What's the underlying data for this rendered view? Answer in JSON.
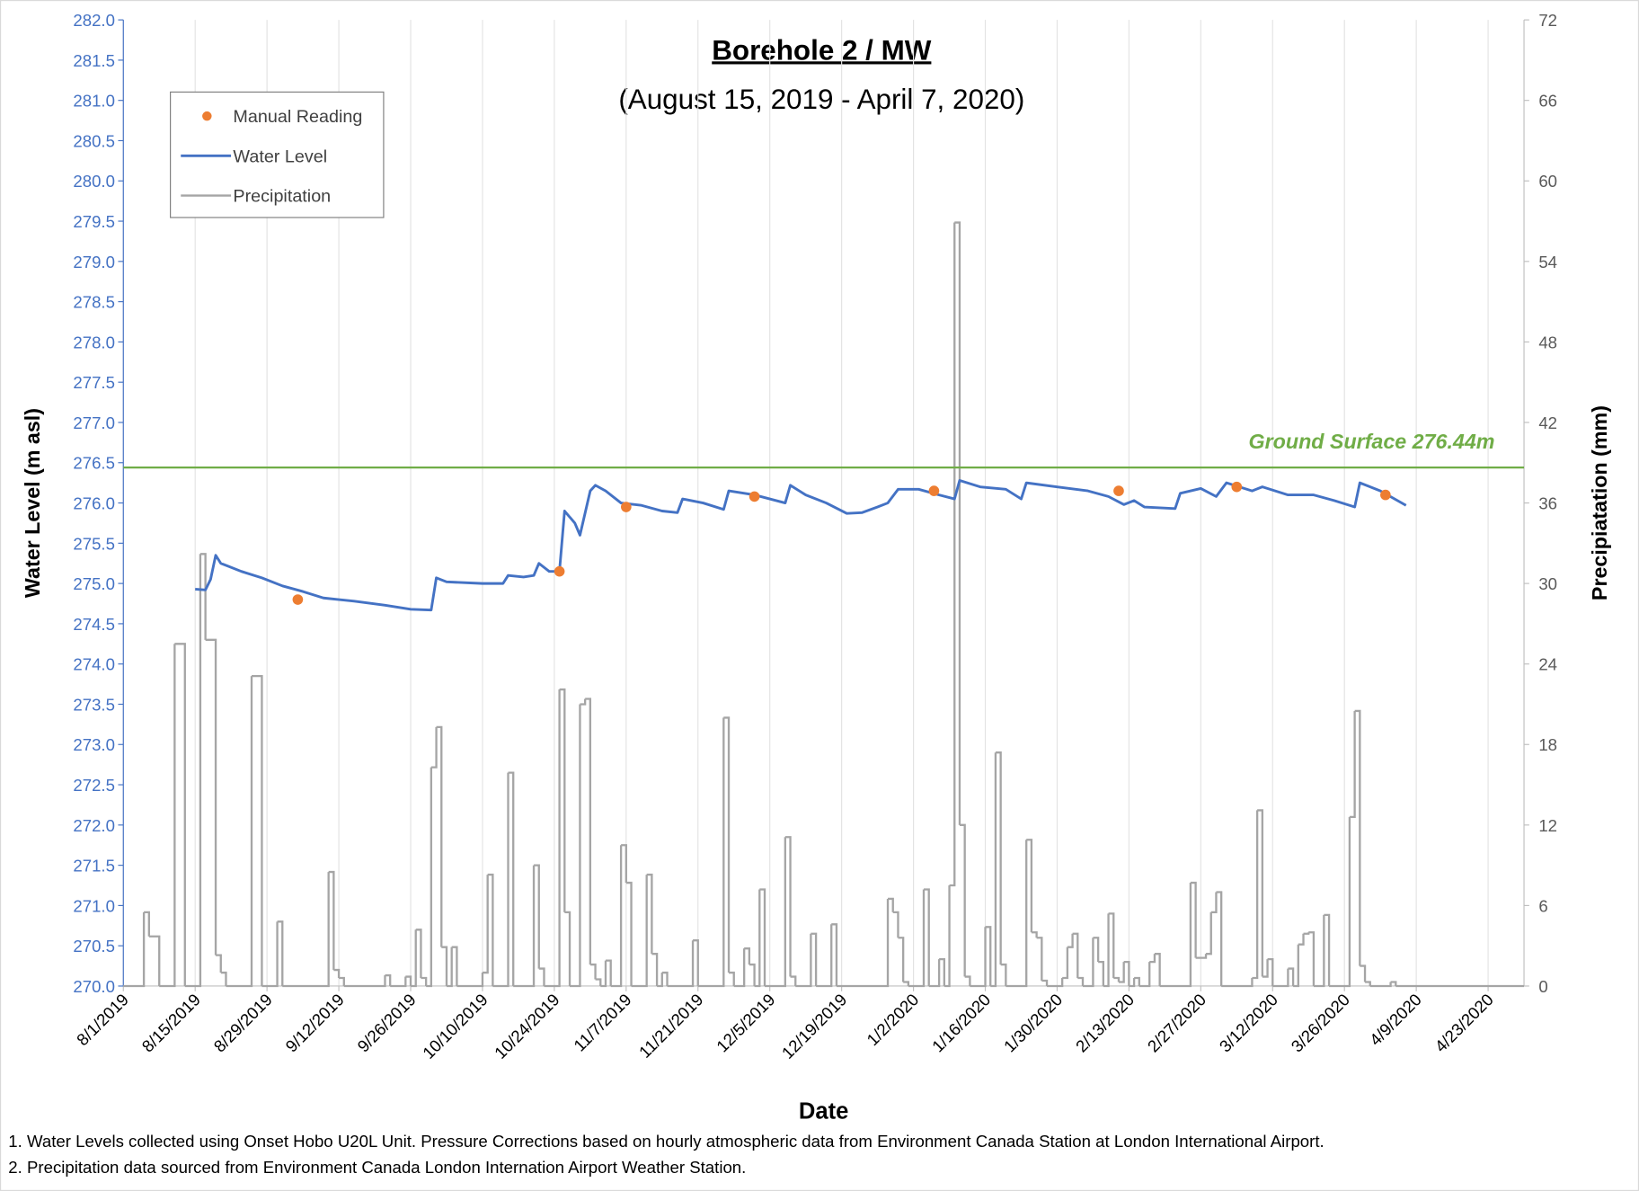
{
  "chart_data": {
    "type": "line",
    "title": "Borehole 2 / MW",
    "subtitle": "(August 15, 2019 - April 7, 2020)",
    "x_label": "Date",
    "y_label": "Water Level (m asl)",
    "y2_label": "Precipiatation (mm)",
    "legend": "upper left",
    "grid": "x",
    "xlim": [
      "8/1/2019",
      "4/30/2020"
    ],
    "xticks": [
      "8/1/2019",
      "8/15/2019",
      "8/29/2019",
      "9/12/2019",
      "9/26/2019",
      "10/10/2019",
      "10/24/2019",
      "11/7/2019",
      "11/21/2019",
      "12/5/2019",
      "12/19/2019",
      "1/2/2020",
      "1/16/2020",
      "1/30/2020",
      "2/13/2020",
      "2/27/2020",
      "3/12/2020",
      "3/26/2020",
      "4/9/2020",
      "4/23/2020"
    ],
    "ylim": [
      270,
      282
    ],
    "yticks": [
      {
        "value": 270,
        "label": "270.0"
      },
      {
        "value": 270.5,
        "label": "270.5"
      },
      {
        "value": 271,
        "label": "271.0"
      },
      {
        "value": 271.5,
        "label": "271.5"
      },
      {
        "value": 272,
        "label": "272.0"
      },
      {
        "value": 272.5,
        "label": "272.5"
      },
      {
        "value": 273,
        "label": "273.0"
      },
      {
        "value": 273.5,
        "label": "273.5"
      },
      {
        "value": 274,
        "label": "274.0"
      },
      {
        "value": 274.5,
        "label": "274.5"
      },
      {
        "value": 275,
        "label": "275.0"
      },
      {
        "value": 275.5,
        "label": "275.5"
      },
      {
        "value": 276,
        "label": "276.0"
      },
      {
        "value": 276.5,
        "label": "276.5"
      },
      {
        "value": 277,
        "label": "277.0"
      },
      {
        "value": 277.5,
        "label": "277.5"
      },
      {
        "value": 278,
        "label": "278.0"
      },
      {
        "value": 278.5,
        "label": "278.5"
      },
      {
        "value": 279,
        "label": "279.0"
      },
      {
        "value": 279.5,
        "label": "279.5"
      },
      {
        "value": 280,
        "label": "280.0"
      },
      {
        "value": 280.5,
        "label": "280.5"
      },
      {
        "value": 281,
        "label": "281.0"
      },
      {
        "value": 281.5,
        "label": "281.5"
      },
      {
        "value": 282,
        "label": "282.0"
      }
    ],
    "y2lim": [
      0,
      72
    ],
    "y2ticks": [
      0,
      6,
      12,
      18,
      24,
      30,
      36,
      42,
      48,
      54,
      60,
      66,
      72
    ],
    "reference_line": {
      "label": "Ground Surface 276.44m",
      "value": 276.44,
      "color": "#70ad47"
    },
    "series": [
      {
        "name": "Manual Reading",
        "type": "scatter",
        "color": "#ed7d31",
        "x": [
          "9/4/2019",
          "10/25/2019",
          "11/7/2019",
          "12/2/2019",
          "1/6/2020",
          "2/11/2020",
          "3/5/2020",
          "4/3/2020"
        ],
        "values": [
          274.8,
          275.15,
          275.95,
          276.08,
          276.15,
          276.15,
          276.2,
          276.1
        ]
      },
      {
        "name": "Water Level",
        "type": "line",
        "color": "#4472c4",
        "x": [
          "8/15/2019",
          "8/17/2019",
          "8/18/2019",
          "8/19/2019",
          "8/20/2019",
          "8/24/2019",
          "8/28/2019",
          "9/1/2019",
          "9/5/2019",
          "9/9/2019",
          "9/15/2019",
          "9/21/2019",
          "9/26/2019",
          "9/30/2019",
          "10/1/2019",
          "10/3/2019",
          "10/10/2019",
          "10/14/2019",
          "10/15/2019",
          "10/18/2019",
          "10/20/2019",
          "10/21/2019",
          "10/23/2019",
          "10/25/2019",
          "10/26/2019",
          "10/28/2019",
          "10/29/2019",
          "10/31/2019",
          "11/1/2019",
          "11/3/2019",
          "11/6/2019",
          "11/10/2019",
          "11/14/2019",
          "11/17/2019",
          "11/18/2019",
          "11/22/2019",
          "11/26/2019",
          "11/27/2019",
          "12/2/2019",
          "12/5/2019",
          "12/8/2019",
          "12/9/2019",
          "12/12/2019",
          "12/16/2019",
          "12/20/2019",
          "12/23/2019",
          "12/26/2019",
          "12/28/2019",
          "12/30/2019",
          "1/3/2020",
          "1/7/2020",
          "1/10/2020",
          "1/11/2020",
          "1/15/2020",
          "1/20/2020",
          "1/23/2020",
          "1/24/2020",
          "1/30/2020",
          "2/5/2020",
          "2/9/2020",
          "2/12/2020",
          "2/14/2020",
          "2/16/2020",
          "2/22/2020",
          "2/23/2020",
          "2/27/2020",
          "3/1/2020",
          "3/3/2020",
          "3/8/2020",
          "3/10/2020",
          "3/15/2020",
          "3/20/2020",
          "3/24/2020",
          "3/28/2020",
          "3/29/2020",
          "4/2/2020",
          "4/7/2020"
        ],
        "values": [
          274.93,
          274.92,
          275.05,
          275.35,
          275.25,
          275.15,
          275.07,
          274.97,
          274.9,
          274.82,
          274.78,
          274.73,
          274.68,
          274.67,
          275.07,
          275.02,
          275.0,
          275.0,
          275.1,
          275.08,
          275.1,
          275.25,
          275.15,
          275.15,
          275.9,
          275.75,
          275.6,
          276.15,
          276.22,
          276.15,
          276.0,
          275.97,
          275.9,
          275.88,
          276.05,
          276.0,
          275.92,
          276.15,
          276.1,
          276.05,
          276.0,
          276.22,
          276.1,
          276.0,
          275.87,
          275.88,
          275.95,
          276.0,
          276.17,
          276.17,
          276.1,
          276.05,
          276.28,
          276.2,
          276.17,
          276.05,
          276.25,
          276.2,
          276.15,
          276.08,
          275.98,
          276.03,
          275.95,
          275.93,
          276.12,
          276.18,
          276.08,
          276.25,
          276.15,
          276.2,
          276.1,
          276.1,
          276.03,
          275.95,
          276.25,
          276.15,
          275.97
        ]
      },
      {
        "name": "Precipitation",
        "type": "step",
        "axis": "y2",
        "color": "#a5a5a5",
        "x": [
          "8/1/2019",
          "8/5/2019",
          "8/6/2019",
          "8/8/2019",
          "8/11/2019",
          "8/13/2019",
          "8/16/2019",
          "8/17/2019",
          "8/19/2019",
          "8/20/2019",
          "8/21/2019",
          "8/26/2019",
          "8/28/2019",
          "8/31/2019",
          "9/1/2019",
          "9/10/2019",
          "9/11/2019",
          "9/12/2019",
          "9/13/2019",
          "9/21/2019",
          "9/22/2019",
          "9/25/2019",
          "9/26/2019",
          "9/27/2019",
          "9/28/2019",
          "9/29/2019",
          "9/30/2019",
          "10/1/2019",
          "10/2/2019",
          "10/3/2019",
          "10/4/2019",
          "10/5/2019",
          "10/10/2019",
          "10/11/2019",
          "10/12/2019",
          "10/15/2019",
          "10/16/2019",
          "10/20/2019",
          "10/21/2019",
          "10/22/2019",
          "10/25/2019",
          "10/26/2019",
          "10/27/2019",
          "10/29/2019",
          "10/30/2019",
          "10/31/2019",
          "11/1/2019",
          "11/2/2019",
          "11/3/2019",
          "11/4/2019",
          "11/6/2019",
          "11/7/2019",
          "11/8/2019",
          "11/11/2019",
          "11/12/2019",
          "11/13/2019",
          "11/14/2019",
          "11/15/2019",
          "11/20/2019",
          "11/21/2019",
          "11/26/2019",
          "11/27/2019",
          "11/28/2019",
          "11/30/2019",
          "12/1/2019",
          "12/2/2019",
          "12/3/2019",
          "12/4/2019",
          "12/8/2019",
          "12/9/2019",
          "12/10/2019",
          "12/13/2019",
          "12/14/2019",
          "12/17/2019",
          "12/18/2019",
          "12/28/2019",
          "12/29/2019",
          "12/30/2019",
          "12/31/2019",
          "1/1/2020",
          "1/4/2020",
          "1/5/2020",
          "1/7/2020",
          "1/8/2020",
          "1/9/2020",
          "1/10/2020",
          "1/11/2020",
          "1/12/2020",
          "1/13/2020",
          "1/16/2020",
          "1/17/2020",
          "1/18/2020",
          "1/19/2020",
          "1/20/2020",
          "1/24/2020",
          "1/25/2020",
          "1/26/2020",
          "1/27/2020",
          "1/28/2020",
          "1/31/2020",
          "2/1/2020",
          "2/2/2020",
          "2/3/2020",
          "2/4/2020",
          "2/6/2020",
          "2/7/2020",
          "2/8/2020",
          "2/9/2020",
          "2/10/2020",
          "2/11/2020",
          "2/12/2020",
          "2/13/2020",
          "2/14/2020",
          "2/15/2020",
          "2/17/2020",
          "2/18/2020",
          "2/19/2020",
          "2/25/2020",
          "2/26/2020",
          "2/28/2020",
          "2/29/2020",
          "3/1/2020",
          "3/2/2020",
          "3/8/2020",
          "3/9/2020",
          "3/10/2020",
          "3/11/2020",
          "3/12/2020",
          "3/15/2020",
          "3/16/2020",
          "3/17/2020",
          "3/18/2020",
          "3/19/2020",
          "3/20/2020",
          "3/22/2020",
          "3/23/2020",
          "3/27/2020",
          "3/28/2020",
          "3/29/2020",
          "3/30/2020",
          "3/31/2020",
          "4/4/2020",
          "4/5/2020",
          "4/30/2020"
        ],
        "values": [
          0,
          5.5,
          3.7,
          0,
          25.5,
          0,
          32.2,
          25.8,
          2.3,
          1,
          0,
          23.1,
          0,
          4.8,
          0,
          8.5,
          1.2,
          0.6,
          0,
          0.8,
          0,
          0.7,
          0,
          4.2,
          0.6,
          0,
          16.3,
          19.3,
          2.9,
          0,
          2.9,
          0,
          1,
          8.3,
          0,
          15.9,
          0,
          9,
          1.3,
          0,
          22.1,
          5.5,
          0,
          21,
          21.4,
          1.6,
          0.5,
          0,
          1.9,
          0,
          10.5,
          7.7,
          0,
          8.3,
          2.4,
          0,
          1,
          0,
          3.4,
          0,
          20,
          1,
          0,
          2.8,
          1.6,
          0,
          7.2,
          0,
          11.1,
          0.7,
          0,
          3.9,
          0,
          4.6,
          0,
          6.5,
          5.5,
          3.6,
          0.3,
          0,
          7.2,
          0,
          2,
          0,
          7.5,
          56.9,
          12,
          0.7,
          0,
          4.4,
          0,
          17.4,
          1.6,
          0,
          10.9,
          4,
          3.6,
          0.4,
          0,
          0.6,
          2.9,
          3.9,
          0.6,
          0,
          3.6,
          1.8,
          0,
          5.4,
          0.6,
          0.3,
          1.8,
          0,
          0.6,
          0,
          1.8,
          2.4,
          0,
          7.7,
          2.1,
          2.4,
          5.5,
          7,
          0,
          0.6,
          13.1,
          0.7,
          2,
          0,
          1.3,
          0,
          3.1,
          3.9,
          4,
          0,
          5.3,
          0,
          12.6,
          20.5,
          1.5,
          0.3,
          0,
          0.3,
          0,
          0
        ]
      }
    ],
    "notes": [
      "1. Water Levels collected using Onset Hobo U20L Unit. Pressure Corrections based on hourly atmospheric data from Environment Canada Station at London International Airport.",
      "2. Precipitation data sourced from Environment Canada London Internation Airport Weather Station."
    ]
  }
}
